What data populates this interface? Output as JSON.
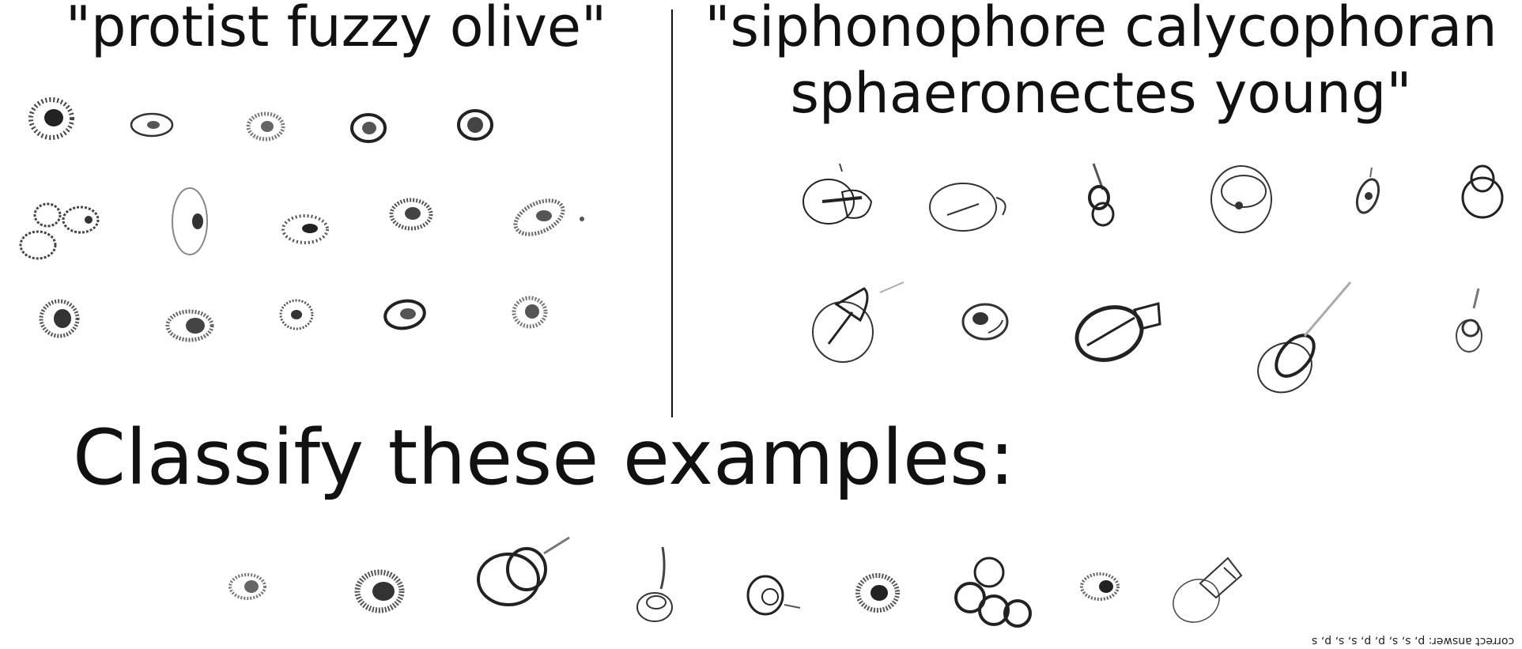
{
  "classes": [
    {
      "label": "\"protist fuzzy olive\""
    },
    {
      "label": "\"siphonophore calycophoran sphaeronectes young\""
    }
  ],
  "prompt": "Classify these examples:",
  "answer": "correct answer: p, s, s, p, p, s, s, p, s",
  "colors": {
    "ink": "#111111",
    "background": "#ffffff"
  }
}
